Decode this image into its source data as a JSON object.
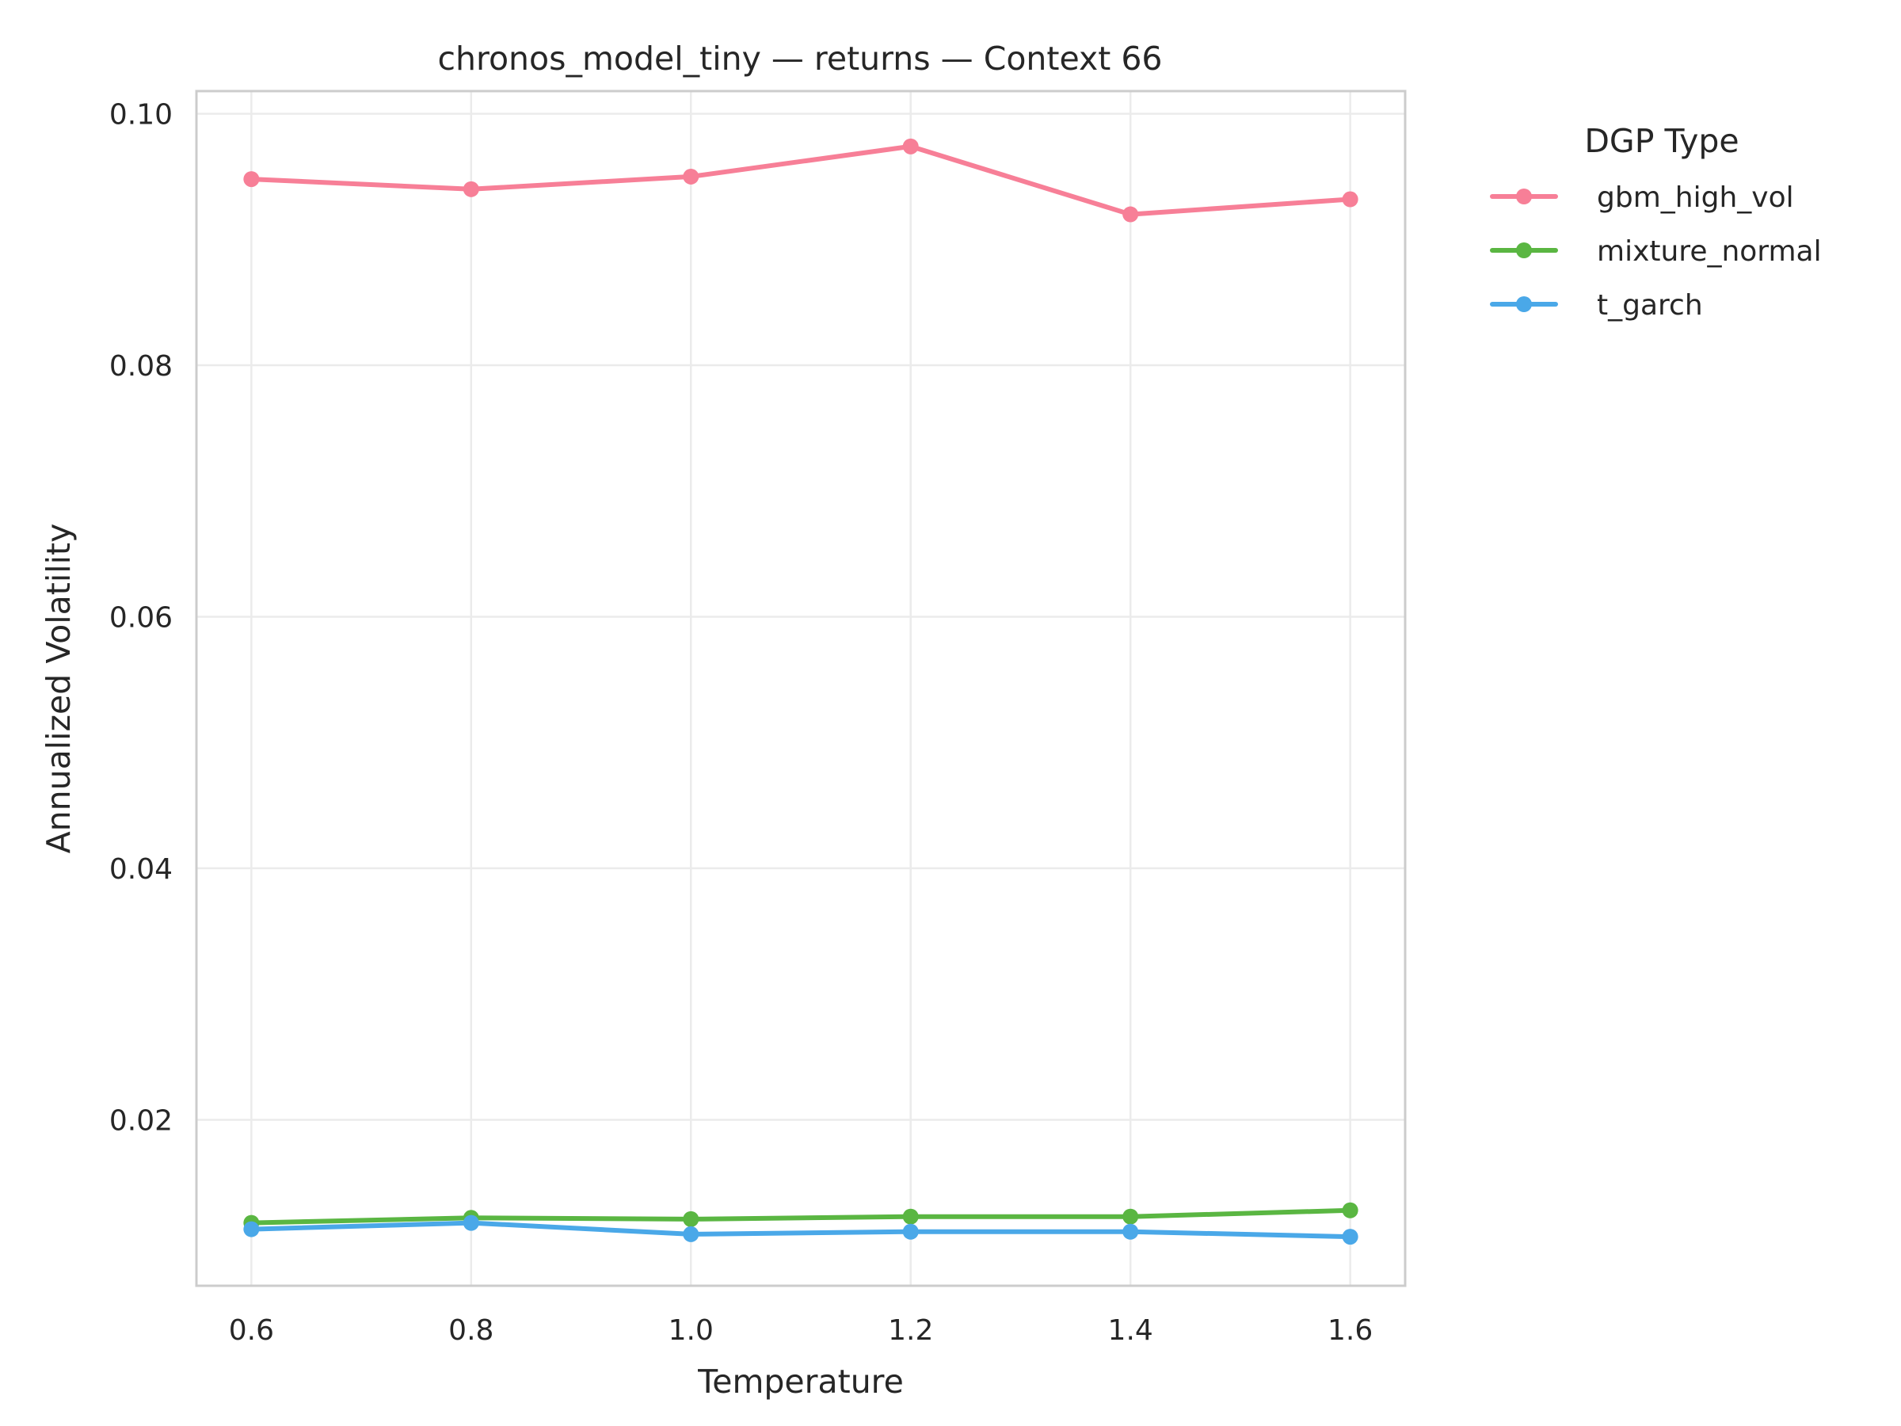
{
  "chart_data": {
    "type": "line",
    "title": "chronos_model_tiny — returns — Context 66",
    "xlabel": "Temperature",
    "ylabel": "Annualized Volatility",
    "x": [
      0.6,
      0.8,
      1.0,
      1.2,
      1.4,
      1.6
    ],
    "x_ticks": [
      "0.6",
      "0.8",
      "1.0",
      "1.2",
      "1.4",
      "1.6"
    ],
    "y_ticks": [
      "0.02",
      "0.04",
      "0.06",
      "0.08",
      "0.10"
    ],
    "xlim": [
      0.55,
      1.65
    ],
    "ylim": [
      0.0068,
      0.1018
    ],
    "grid": true,
    "legend": {
      "title": "DGP Type",
      "placement": "outside-right"
    },
    "series": [
      {
        "name": "gbm_high_vol",
        "color": "#f77f97",
        "values": [
          0.0948,
          0.094,
          0.095,
          0.0974,
          0.092,
          0.0932
        ]
      },
      {
        "name": "mixture_normal",
        "color": "#5ab642",
        "values": [
          0.0118,
          0.0122,
          0.0121,
          0.0123,
          0.0123,
          0.0128
        ]
      },
      {
        "name": "t_garch",
        "color": "#4aa8e8",
        "values": [
          0.0113,
          0.0118,
          0.0109,
          0.0111,
          0.0111,
          0.0107
        ]
      }
    ]
  }
}
